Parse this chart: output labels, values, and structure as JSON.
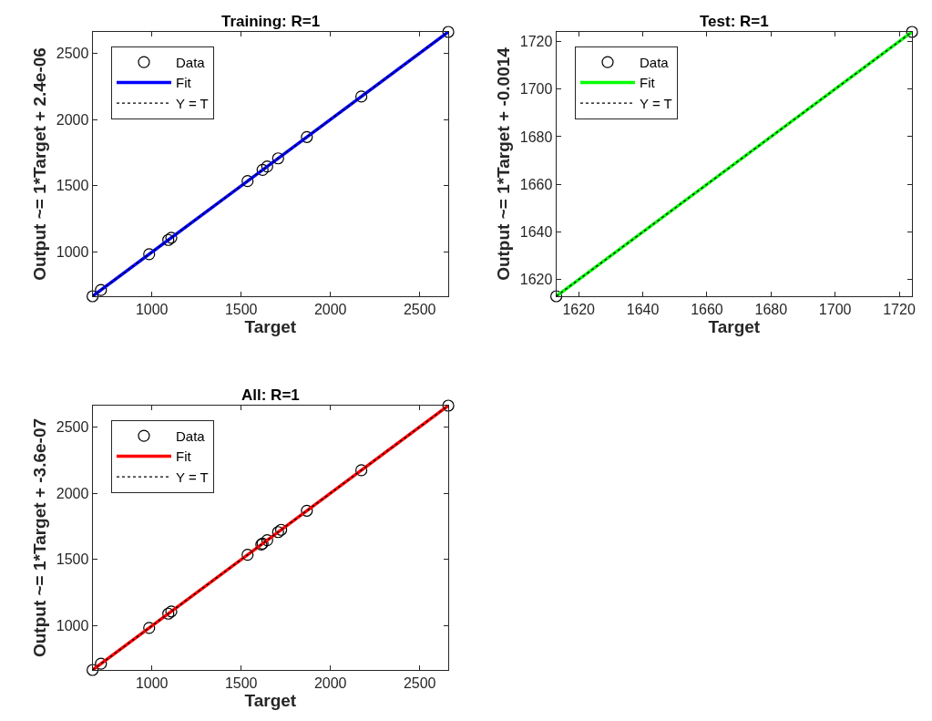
{
  "chart_data": [
    {
      "type": "scatter",
      "title": "Training: R=1",
      "xlabel": "Target",
      "ylabel": "Output ~= 1*Target + 2.4e-06",
      "xlim": [
        668,
        2660
      ],
      "ylim": [
        668,
        2660
      ],
      "xticks": [
        1000,
        1500,
        2000,
        2500
      ],
      "yticks": [
        1000,
        1500,
        2000,
        2500
      ],
      "grid": false,
      "legend": "top left",
      "series": [
        {
          "name": "Data",
          "type": "scatter",
          "marker": "circle",
          "color": "#000000",
          "x": [
            668,
            715,
            985,
            1092,
            1109,
            1536,
            1620,
            1646,
            1707,
            1868,
            2173,
            2660
          ],
          "values": [
            668,
            715,
            985,
            1092,
            1109,
            1536,
            1620,
            1646,
            1707,
            1868,
            2173,
            2660
          ]
        },
        {
          "name": "Fit",
          "type": "line",
          "color": "#0000ff",
          "x": [
            668,
            2660
          ],
          "values": [
            668,
            2660
          ]
        },
        {
          "name": "Y = T",
          "type": "line",
          "line_style": "dotted",
          "color": "#000000",
          "x": [
            668,
            2660
          ],
          "values": [
            668,
            2660
          ]
        }
      ]
    },
    {
      "type": "scatter",
      "title": "Test: R=1",
      "xlabel": "Target",
      "ylabel": "Output ~= 1*Target + -0.0014",
      "xlim": [
        1613,
        1724
      ],
      "ylim": [
        1613,
        1724
      ],
      "xticks": [
        1620,
        1640,
        1660,
        1680,
        1700,
        1720
      ],
      "yticks": [
        1620,
        1640,
        1660,
        1680,
        1700,
        1720
      ],
      "grid": false,
      "legend": "top left",
      "series": [
        {
          "name": "Data",
          "type": "scatter",
          "marker": "circle",
          "color": "#000000",
          "x": [
            1613,
            1724
          ],
          "values": [
            1613,
            1724
          ]
        },
        {
          "name": "Fit",
          "type": "line",
          "color": "#00ff00",
          "x": [
            1613,
            1724
          ],
          "values": [
            1613,
            1724
          ]
        },
        {
          "name": "Y = T",
          "type": "line",
          "line_style": "dotted",
          "color": "#000000",
          "x": [
            1613,
            1724
          ],
          "values": [
            1613,
            1724
          ]
        }
      ]
    },
    {
      "type": "scatter",
      "title": "All: R=1",
      "xlabel": "Target",
      "ylabel": "Output ~= 1*Target + -3.6e-07",
      "xlim": [
        668,
        2660
      ],
      "ylim": [
        668,
        2660
      ],
      "xticks": [
        1000,
        1500,
        2000,
        2500
      ],
      "yticks": [
        1000,
        1500,
        2000,
        2500
      ],
      "grid": false,
      "legend": "top left",
      "series": [
        {
          "name": "Data",
          "type": "scatter",
          "marker": "circle",
          "color": "#000000",
          "x": [
            668,
            715,
            985,
            1092,
            1109,
            1536,
            1613,
            1620,
            1646,
            1707,
            1724,
            1868,
            2173,
            2660
          ],
          "values": [
            668,
            715,
            985,
            1092,
            1109,
            1536,
            1613,
            1620,
            1646,
            1707,
            1724,
            1868,
            2173,
            2660
          ]
        },
        {
          "name": "Fit",
          "type": "line",
          "color": "#ff0000",
          "x": [
            668,
            2660
          ],
          "values": [
            668,
            2660
          ]
        },
        {
          "name": "Y = T",
          "type": "line",
          "line_style": "dotted",
          "color": "#000000",
          "x": [
            668,
            2660
          ],
          "values": [
            668,
            2660
          ]
        }
      ]
    }
  ]
}
